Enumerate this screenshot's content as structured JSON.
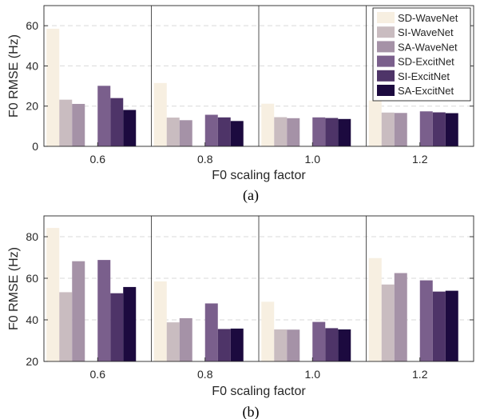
{
  "chart_data": [
    {
      "type": "bar",
      "caption": "(a)",
      "xlabel": "F0 scaling factor",
      "ylabel": "F0 RMSE (Hz)",
      "categories": [
        "0.6",
        "0.8",
        "1.0",
        "1.2"
      ],
      "ylim": [
        0,
        70
      ],
      "yticks": [
        0,
        20,
        40,
        60
      ],
      "grid": true,
      "legend": "top-right",
      "series": [
        {
          "name": "SD-WaveNet",
          "values": [
            58.5,
            31.5,
            21.2,
            22.8
          ]
        },
        {
          "name": "SI-WaveNet",
          "values": [
            23.2,
            14.3,
            14.5,
            16.8
          ]
        },
        {
          "name": "SA-WaveNet",
          "values": [
            21.1,
            13.0,
            14.0,
            16.6
          ]
        },
        {
          "name": "SD-ExcitNet",
          "values": [
            30.1,
            15.7,
            14.4,
            17.4
          ]
        },
        {
          "name": "SI-ExcitNet",
          "values": [
            24.0,
            14.4,
            14.1,
            16.9
          ]
        },
        {
          "name": "SA-ExcitNet",
          "values": [
            18.1,
            12.6,
            13.6,
            16.5
          ]
        }
      ]
    },
    {
      "type": "bar",
      "caption": "(b)",
      "xlabel": "F0 scaling factor",
      "ylabel": "F0 RMSE (Hz)",
      "categories": [
        "0.6",
        "0.8",
        "1.0",
        "1.2"
      ],
      "ylim": [
        20,
        90
      ],
      "yticks": [
        20,
        40,
        60,
        80
      ],
      "grid": true,
      "series": [
        {
          "name": "SD-WaveNet",
          "values": [
            84.2,
            58.5,
            48.7,
            69.7
          ]
        },
        {
          "name": "SI-WaveNet",
          "values": [
            53.3,
            38.8,
            35.4,
            57.0
          ]
        },
        {
          "name": "SA-WaveNet",
          "values": [
            68.2,
            40.8,
            35.3,
            62.5
          ]
        },
        {
          "name": "SD-ExcitNet",
          "values": [
            68.8,
            47.9,
            39.0,
            59.0
          ]
        },
        {
          "name": "SI-ExcitNet",
          "values": [
            52.8,
            35.6,
            36.0,
            53.6
          ]
        },
        {
          "name": "SA-ExcitNet",
          "values": [
            55.8,
            35.8,
            35.4,
            54.0
          ]
        }
      ]
    }
  ],
  "colors": [
    "#f7efe1",
    "#c9bcc0",
    "#a592a7",
    "#7a5f8c",
    "#4e3468",
    "#1c0a3f"
  ]
}
